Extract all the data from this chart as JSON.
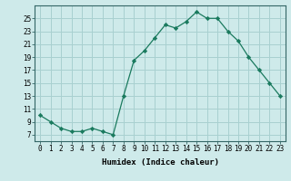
{
  "x": [
    0,
    1,
    2,
    3,
    4,
    5,
    6,
    7,
    8,
    9,
    10,
    11,
    12,
    13,
    14,
    15,
    16,
    17,
    18,
    19,
    20,
    21,
    22,
    23
  ],
  "y": [
    10,
    9,
    8,
    7.5,
    7.5,
    8,
    7.5,
    7,
    13,
    18.5,
    20,
    22,
    24,
    23.5,
    24.5,
    26,
    25,
    25,
    23,
    21.5,
    19,
    17,
    15,
    13
  ],
  "line_color": "#1a7a5e",
  "marker": "D",
  "marker_size": 2.2,
  "bg_color": "#ceeaea",
  "grid_color": "#a8d0d0",
  "xlabel": "Humidex (Indice chaleur)",
  "xlim": [
    -0.5,
    23.5
  ],
  "ylim": [
    6,
    27
  ],
  "xticks": [
    0,
    1,
    2,
    3,
    4,
    5,
    6,
    7,
    8,
    9,
    10,
    11,
    12,
    13,
    14,
    15,
    16,
    17,
    18,
    19,
    20,
    21,
    22,
    23
  ],
  "yticks": [
    7,
    9,
    11,
    13,
    15,
    17,
    19,
    21,
    23,
    25
  ],
  "label_fontsize": 6.5,
  "tick_fontsize": 5.5
}
